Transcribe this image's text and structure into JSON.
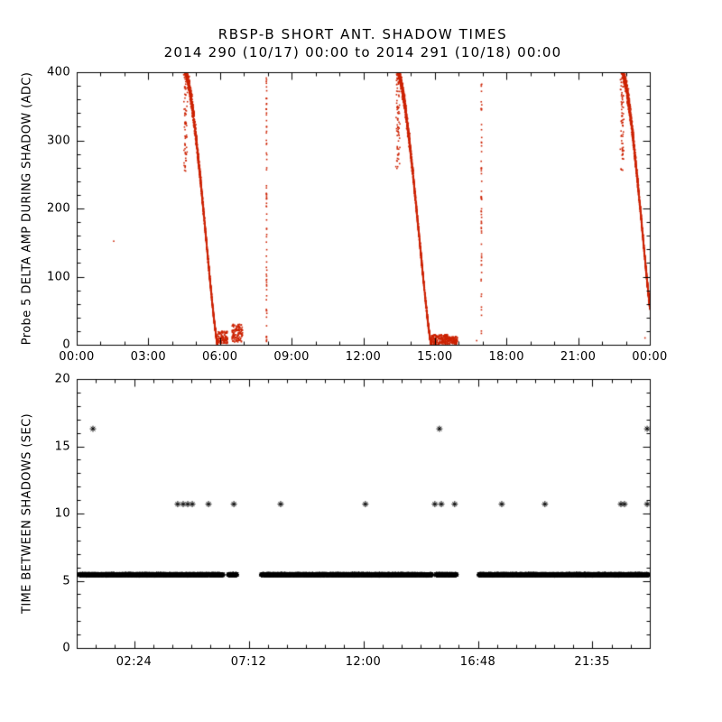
{
  "figure": {
    "background": "#ffffff",
    "axis_color": "#000000"
  },
  "chart_data": [
    {
      "type": "scatter",
      "panel": "top",
      "title": "RBSP-B SHORT ANT. SHADOW TIMES",
      "subtitle": "2014 290 (10/17) 00:00 to 2014 291 (10/18) 00:00",
      "ylabel": "Probe 5 DELTA AMP DURING SHADOW (ADC)",
      "xlabel": "",
      "marker": "dot",
      "color": "#cc2200",
      "xlim": [
        0,
        24
      ],
      "ylim": [
        0,
        400
      ],
      "yticks": [
        0,
        100,
        200,
        300,
        400
      ],
      "ytick_labels": [
        "0",
        "100",
        "200",
        "300",
        "400"
      ],
      "yminor_step": 20,
      "xticks": [
        0,
        3,
        6,
        9,
        12,
        15,
        18,
        21,
        24
      ],
      "xtick_labels": [
        "00:00",
        "03:00",
        "06:00",
        "09:00",
        "12:00",
        "15:00",
        "18:00",
        "21:00",
        "00:00"
      ],
      "xminor_step": 1,
      "shadow_events": [
        {
          "kind": "decay",
          "t0": 4.55,
          "duration": 1.35,
          "vmax": 400,
          "tails": [
            [
              5.9,
              6.32,
              2,
              20
            ],
            [
              6.5,
              6.95,
              4,
              30
            ]
          ]
        },
        {
          "kind": "decay",
          "t0": 13.45,
          "duration": 1.4,
          "vmax": 400,
          "tails": [
            [
              14.85,
              15.55,
              1,
              15
            ],
            [
              15.55,
              15.95,
              1,
              12
            ]
          ]
        },
        {
          "kind": "decay",
          "t0": 22.85,
          "duration": 1.35,
          "vmax": 400,
          "tails": []
        },
        {
          "kind": "sparse_column",
          "t": 7.95,
          "vmin": 0,
          "vmax": 400,
          "count": 75
        },
        {
          "kind": "sparse_column",
          "t": 16.95,
          "vmin": 0,
          "vmax": 400,
          "count": 60
        },
        {
          "kind": "dots",
          "points": [
            [
              1.55,
              152
            ],
            [
              16.75,
              6
            ],
            [
              23.8,
              10
            ]
          ]
        }
      ]
    },
    {
      "type": "scatter",
      "panel": "bottom",
      "ylabel": "TIME BETWEEN SHADOWS (SEC)",
      "xlabel": "",
      "marker": "asterisk",
      "color": "#000000",
      "xlim": [
        0,
        24
      ],
      "ylim": [
        0,
        20
      ],
      "yticks": [
        0,
        5,
        10,
        15,
        20
      ],
      "ytick_labels": [
        "0",
        "5",
        "10",
        "15",
        "20"
      ],
      "yminor_step": 1,
      "xticks": [
        2.4,
        7.2,
        12,
        16.8,
        21.5833
      ],
      "xtick_labels": [
        "02:24",
        "07:12",
        "12:00",
        "16:48",
        "21:35"
      ],
      "xminor_step": 0.8,
      "band_value": 5.45,
      "band_segments": [
        [
          0.12,
          6.12
        ],
        [
          6.33,
          6.7
        ],
        [
          7.73,
          14.87
        ],
        [
          15.05,
          15.9
        ],
        [
          16.85,
          23.95
        ]
      ],
      "mid_value": 10.7,
      "mid_times": [
        4.23,
        4.46,
        4.65,
        4.84,
        5.52,
        6.58,
        8.54,
        12.09,
        15.0,
        15.27,
        15.83,
        17.8,
        19.61,
        22.79,
        22.94,
        23.89
      ],
      "high_value": 16.3,
      "high_times": [
        0.68,
        15.19,
        23.89
      ]
    }
  ]
}
